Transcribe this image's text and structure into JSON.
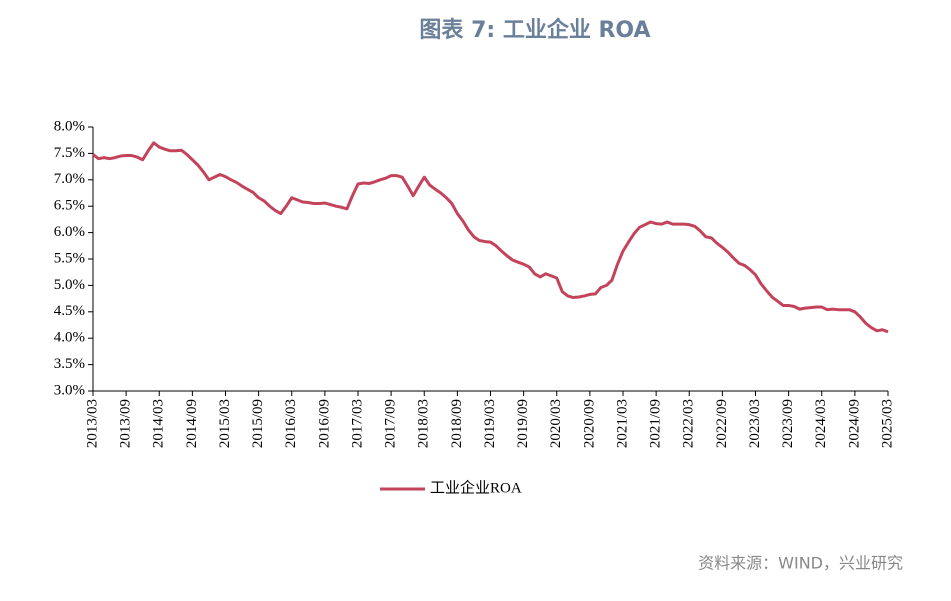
{
  "chart_data": {
    "type": "line",
    "title": "图表 7: 工业企业 ROA",
    "source": "资料来源：WIND，兴业研究",
    "categories": [
      "2013/03",
      null,
      null,
      null,
      null,
      null,
      "2013/09",
      null,
      null,
      null,
      null,
      null,
      "2014/03",
      null,
      null,
      null,
      null,
      null,
      "2014/09",
      null,
      null,
      null,
      null,
      null,
      "2015/03",
      null,
      null,
      null,
      null,
      null,
      "2015/09",
      null,
      null,
      null,
      null,
      null,
      "2016/03",
      null,
      null,
      null,
      null,
      null,
      "2016/09",
      null,
      null,
      null,
      null,
      null,
      "2017/03",
      null,
      null,
      null,
      null,
      null,
      "2017/09",
      null,
      null,
      null,
      null,
      null,
      "2018/03",
      null,
      null,
      null,
      null,
      null,
      "2018/09",
      null,
      null,
      null,
      null,
      null,
      "2019/03",
      null,
      null,
      null,
      null,
      null,
      "2019/09",
      null,
      null,
      null,
      null,
      null,
      "2020/03",
      null,
      null,
      null,
      null,
      null,
      "2020/09",
      null,
      null,
      null,
      null,
      null,
      "2021/03",
      null,
      null,
      null,
      null,
      null,
      "2021/09",
      null,
      null,
      null,
      null,
      null,
      "2022/03",
      null,
      null,
      null,
      null,
      null,
      "2022/09",
      null,
      null,
      null,
      null,
      null,
      "2023/03",
      null,
      null,
      null,
      null,
      null,
      "2023/09",
      null,
      null,
      null,
      null,
      null,
      "2024/03",
      null,
      null,
      null,
      null,
      null,
      "2024/09",
      null,
      null,
      null,
      null,
      null,
      "2025/03"
    ],
    "series": [
      {
        "name": "工业企业ROA",
        "color": "#c3435a",
        "values": [
          7.48,
          7.4,
          7.42,
          7.4,
          7.42,
          7.45,
          7.46,
          7.46,
          7.43,
          7.38,
          7.55,
          7.7,
          7.62,
          7.58,
          7.55,
          7.55,
          7.56,
          7.48,
          7.38,
          7.28,
          7.15,
          7.0,
          7.05,
          7.1,
          7.06,
          7.0,
          6.95,
          6.88,
          6.82,
          6.76,
          6.66,
          6.6,
          6.5,
          6.42,
          6.36,
          6.5,
          6.66,
          6.62,
          6.58,
          6.57,
          6.55,
          6.55,
          6.56,
          6.53,
          6.5,
          6.48,
          6.45,
          6.7,
          6.92,
          6.94,
          6.93,
          6.96,
          7.0,
          7.03,
          7.08,
          7.08,
          7.05,
          6.88,
          6.7,
          6.88,
          7.05,
          6.9,
          6.82,
          6.75,
          6.66,
          6.55,
          6.36,
          6.22,
          6.05,
          5.92,
          5.85,
          5.83,
          5.82,
          5.75,
          5.65,
          5.56,
          5.48,
          5.44,
          5.4,
          5.35,
          5.22,
          5.16,
          5.22,
          5.18,
          5.14,
          4.88,
          4.8,
          4.77,
          4.78,
          4.8,
          4.83,
          4.84,
          4.96,
          5.0,
          5.1,
          5.4,
          5.65,
          5.82,
          5.98,
          6.1,
          6.15,
          6.2,
          6.17,
          6.16,
          6.2,
          6.16,
          6.16,
          6.16,
          6.15,
          6.12,
          6.03,
          5.92,
          5.9,
          5.8,
          5.72,
          5.63,
          5.52,
          5.42,
          5.38,
          5.3,
          5.2,
          5.03,
          4.9,
          4.78,
          4.7,
          4.62,
          4.62,
          4.6,
          4.55,
          4.57,
          4.58,
          4.59,
          4.59,
          4.54,
          4.55,
          4.54,
          4.54,
          4.54,
          4.5,
          4.4,
          4.28,
          4.2,
          4.14,
          4.16,
          4.12
        ]
      }
    ],
    "ylim": [
      3,
      8
    ],
    "yticks": [
      {
        "value": 3,
        "label": "3.0%"
      },
      {
        "value": 3.5,
        "label": "3.5%"
      },
      {
        "value": 4,
        "label": "4.0%"
      },
      {
        "value": 4.5,
        "label": "4.5%"
      },
      {
        "value": 5,
        "label": "5.0%"
      },
      {
        "value": 5.5,
        "label": "5.5%"
      },
      {
        "value": 6,
        "label": "6.0%"
      },
      {
        "value": 6.5,
        "label": "6.5%"
      },
      {
        "value": 7,
        "label": "7.0%"
      },
      {
        "value": 7.5,
        "label": "7.5%"
      },
      {
        "value": 8,
        "label": "8.0%"
      }
    ],
    "grid": false,
    "legend": "bottom"
  }
}
